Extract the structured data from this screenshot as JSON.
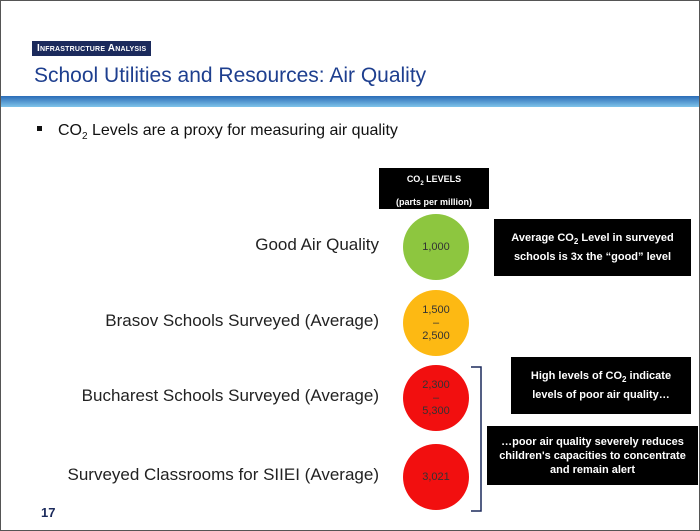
{
  "header": {
    "kicker": "Infrastructure Analysis",
    "title": "School Utilities and Resources: Air Quality"
  },
  "bullet": {
    "parts": [
      "CO",
      "2",
      " Levels are a proxy for measuring air quality"
    ]
  },
  "column_header": {
    "parts": [
      "CO",
      "2",
      " LEVELS"
    ],
    "unit": "(parts per million)"
  },
  "rows": [
    {
      "label": "Good Air Quality",
      "value": [
        "1,000"
      ]
    },
    {
      "label": "Brasov Schools Surveyed (Average)",
      "value": [
        "1,500",
        "–",
        "2,500"
      ]
    },
    {
      "label": "Bucharest Schools Surveyed (Average)",
      "value": [
        "2,300",
        "–",
        "5,300"
      ]
    },
    {
      "label": "Surveyed Classrooms for SIIEI (Average)",
      "value": [
        "3,021"
      ]
    }
  ],
  "callouts": [
    {
      "parts": [
        "Average CO",
        "2",
        " Level in surveyed schools is 3x the “good” level"
      ]
    },
    {
      "parts": [
        "High levels of CO",
        "2",
        " indicate levels of poor air quality…"
      ]
    },
    {
      "parts": [
        "…poor air quality severely reduces children's capacities to concentrate and remain alert"
      ]
    }
  ],
  "page_number": "17"
}
